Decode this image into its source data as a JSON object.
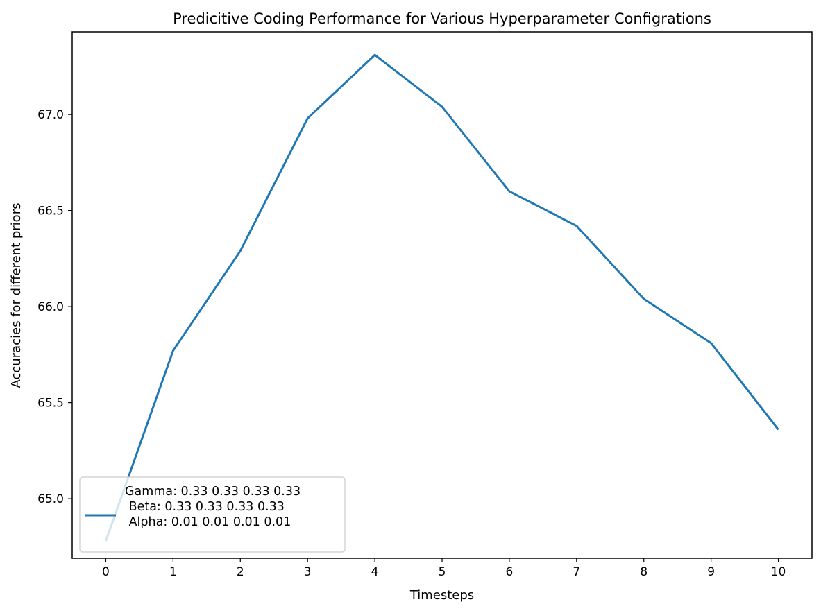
{
  "chart_data": {
    "type": "line",
    "title": "Predicitive Coding Performance for Various Hyperparameter Configrations",
    "xlabel": "Timesteps",
    "ylabel": "Accuracies for different priors",
    "x": [
      0,
      1,
      2,
      3,
      4,
      5,
      6,
      7,
      8,
      9,
      10
    ],
    "xlim": [
      -0.5,
      10.5
    ],
    "ylim": [
      64.69,
      67.43
    ],
    "x_ticks": [
      "0",
      "1",
      "2",
      "3",
      "4",
      "5",
      "6",
      "7",
      "8",
      "9",
      "10"
    ],
    "y_tick_values": [
      65.0,
      65.5,
      66.0,
      66.5,
      67.0
    ],
    "y_ticks": [
      "65.0",
      "65.5",
      "66.0",
      "66.5",
      "67.0"
    ],
    "grid": false,
    "legend_position": "lower-left",
    "series": [
      {
        "name": "Gamma: 0.33 0.33 0.33 0.33\n Beta: 0.33 0.33 0.33 0.33\n Alpha: 0.01 0.01 0.01 0.01",
        "legend_lines": [
          "Gamma: 0.33 0.33 0.33 0.33",
          " Beta: 0.33 0.33 0.33 0.33",
          " Alpha: 0.01 0.01 0.01 0.01"
        ],
        "color": "#1f77b4",
        "values": [
          64.78,
          65.77,
          66.29,
          66.98,
          67.31,
          67.04,
          66.6,
          66.42,
          66.04,
          65.81,
          65.36
        ]
      }
    ]
  }
}
